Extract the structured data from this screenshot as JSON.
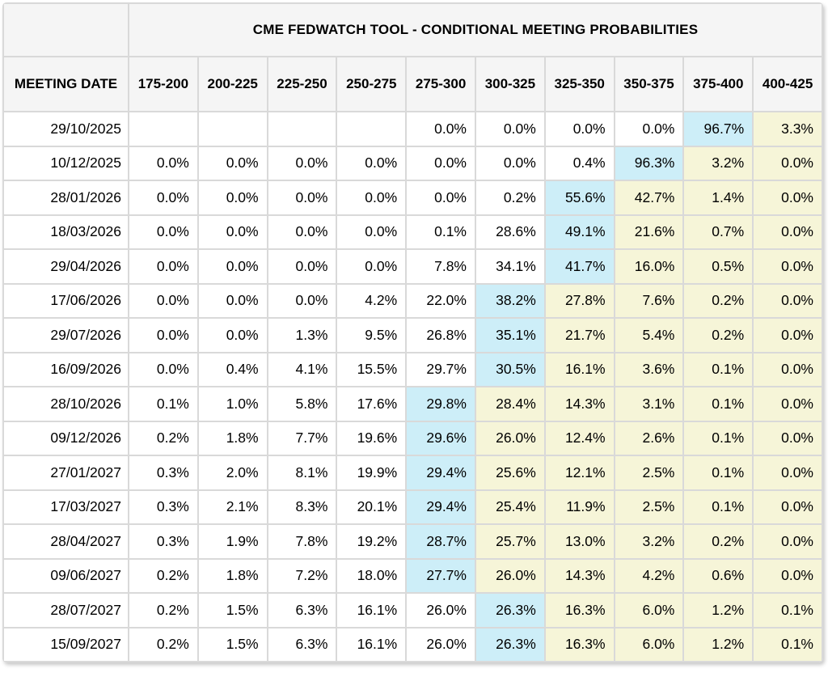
{
  "chart_data": {
    "type": "table",
    "title": "CME FEDWATCH TOOL - CONDITIONAL MEETING PROBABILITIES",
    "date_column_header": "MEETING DATE",
    "rate_bin_headers": [
      "175-200",
      "200-225",
      "225-250",
      "250-275",
      "275-300",
      "300-325",
      "325-350",
      "350-375",
      "375-400",
      "400-425"
    ],
    "highlight_colors": {
      "blue": "#cdeef8",
      "yellow": "#f6f5d8"
    },
    "rows": [
      {
        "date": "29/10/2025",
        "values": [
          "",
          "",
          "",
          "",
          "0.0%",
          "0.0%",
          "0.0%",
          "0.0%",
          "96.7%",
          "3.3%"
        ],
        "highlights": [
          null,
          null,
          null,
          null,
          null,
          null,
          null,
          null,
          "blue",
          "yellow"
        ]
      },
      {
        "date": "10/12/2025",
        "values": [
          "0.0%",
          "0.0%",
          "0.0%",
          "0.0%",
          "0.0%",
          "0.0%",
          "0.4%",
          "96.3%",
          "3.2%",
          "0.0%"
        ],
        "highlights": [
          null,
          null,
          null,
          null,
          null,
          null,
          null,
          "blue",
          "yellow",
          "yellow"
        ]
      },
      {
        "date": "28/01/2026",
        "values": [
          "0.0%",
          "0.0%",
          "0.0%",
          "0.0%",
          "0.0%",
          "0.2%",
          "55.6%",
          "42.7%",
          "1.4%",
          "0.0%"
        ],
        "highlights": [
          null,
          null,
          null,
          null,
          null,
          null,
          "blue",
          "yellow",
          "yellow",
          "yellow"
        ]
      },
      {
        "date": "18/03/2026",
        "values": [
          "0.0%",
          "0.0%",
          "0.0%",
          "0.0%",
          "0.1%",
          "28.6%",
          "49.1%",
          "21.6%",
          "0.7%",
          "0.0%"
        ],
        "highlights": [
          null,
          null,
          null,
          null,
          null,
          null,
          "blue",
          "yellow",
          "yellow",
          "yellow"
        ]
      },
      {
        "date": "29/04/2026",
        "values": [
          "0.0%",
          "0.0%",
          "0.0%",
          "0.0%",
          "7.8%",
          "34.1%",
          "41.7%",
          "16.0%",
          "0.5%",
          "0.0%"
        ],
        "highlights": [
          null,
          null,
          null,
          null,
          null,
          null,
          "blue",
          "yellow",
          "yellow",
          "yellow"
        ]
      },
      {
        "date": "17/06/2026",
        "values": [
          "0.0%",
          "0.0%",
          "0.0%",
          "4.2%",
          "22.0%",
          "38.2%",
          "27.8%",
          "7.6%",
          "0.2%",
          "0.0%"
        ],
        "highlights": [
          null,
          null,
          null,
          null,
          null,
          "blue",
          "yellow",
          "yellow",
          "yellow",
          "yellow"
        ]
      },
      {
        "date": "29/07/2026",
        "values": [
          "0.0%",
          "0.0%",
          "1.3%",
          "9.5%",
          "26.8%",
          "35.1%",
          "21.7%",
          "5.4%",
          "0.2%",
          "0.0%"
        ],
        "highlights": [
          null,
          null,
          null,
          null,
          null,
          "blue",
          "yellow",
          "yellow",
          "yellow",
          "yellow"
        ]
      },
      {
        "date": "16/09/2026",
        "values": [
          "0.0%",
          "0.4%",
          "4.1%",
          "15.5%",
          "29.7%",
          "30.5%",
          "16.1%",
          "3.6%",
          "0.1%",
          "0.0%"
        ],
        "highlights": [
          null,
          null,
          null,
          null,
          null,
          "blue",
          "yellow",
          "yellow",
          "yellow",
          "yellow"
        ]
      },
      {
        "date": "28/10/2026",
        "values": [
          "0.1%",
          "1.0%",
          "5.8%",
          "17.6%",
          "29.8%",
          "28.4%",
          "14.3%",
          "3.1%",
          "0.1%",
          "0.0%"
        ],
        "highlights": [
          null,
          null,
          null,
          null,
          "blue",
          "yellow",
          "yellow",
          "yellow",
          "yellow",
          "yellow"
        ]
      },
      {
        "date": "09/12/2026",
        "values": [
          "0.2%",
          "1.8%",
          "7.7%",
          "19.6%",
          "29.6%",
          "26.0%",
          "12.4%",
          "2.6%",
          "0.1%",
          "0.0%"
        ],
        "highlights": [
          null,
          null,
          null,
          null,
          "blue",
          "yellow",
          "yellow",
          "yellow",
          "yellow",
          "yellow"
        ]
      },
      {
        "date": "27/01/2027",
        "values": [
          "0.3%",
          "2.0%",
          "8.1%",
          "19.9%",
          "29.4%",
          "25.6%",
          "12.1%",
          "2.5%",
          "0.1%",
          "0.0%"
        ],
        "highlights": [
          null,
          null,
          null,
          null,
          "blue",
          "yellow",
          "yellow",
          "yellow",
          "yellow",
          "yellow"
        ]
      },
      {
        "date": "17/03/2027",
        "values": [
          "0.3%",
          "2.1%",
          "8.3%",
          "20.1%",
          "29.4%",
          "25.4%",
          "11.9%",
          "2.5%",
          "0.1%",
          "0.0%"
        ],
        "highlights": [
          null,
          null,
          null,
          null,
          "blue",
          "yellow",
          "yellow",
          "yellow",
          "yellow",
          "yellow"
        ]
      },
      {
        "date": "28/04/2027",
        "values": [
          "0.3%",
          "1.9%",
          "7.8%",
          "19.2%",
          "28.7%",
          "25.7%",
          "13.0%",
          "3.2%",
          "0.2%",
          "0.0%"
        ],
        "highlights": [
          null,
          null,
          null,
          null,
          "blue",
          "yellow",
          "yellow",
          "yellow",
          "yellow",
          "yellow"
        ]
      },
      {
        "date": "09/06/2027",
        "values": [
          "0.2%",
          "1.8%",
          "7.2%",
          "18.0%",
          "27.7%",
          "26.0%",
          "14.3%",
          "4.2%",
          "0.6%",
          "0.0%"
        ],
        "highlights": [
          null,
          null,
          null,
          null,
          "blue",
          "yellow",
          "yellow",
          "yellow",
          "yellow",
          "yellow"
        ]
      },
      {
        "date": "28/07/2027",
        "values": [
          "0.2%",
          "1.5%",
          "6.3%",
          "16.1%",
          "26.0%",
          "26.3%",
          "16.3%",
          "6.0%",
          "1.2%",
          "0.1%"
        ],
        "highlights": [
          null,
          null,
          null,
          null,
          null,
          "blue",
          "yellow",
          "yellow",
          "yellow",
          "yellow"
        ]
      },
      {
        "date": "15/09/2027",
        "values": [
          "0.2%",
          "1.5%",
          "6.3%",
          "16.1%",
          "26.0%",
          "26.3%",
          "16.3%",
          "6.0%",
          "1.2%",
          "0.1%"
        ],
        "highlights": [
          null,
          null,
          null,
          null,
          null,
          "blue",
          "yellow",
          "yellow",
          "yellow",
          "yellow"
        ]
      }
    ]
  },
  "styles": {
    "page_bg": "#ffffff",
    "header_bg": "#f5f5f5",
    "border": "#d9d9d9",
    "text": "#000000"
  }
}
